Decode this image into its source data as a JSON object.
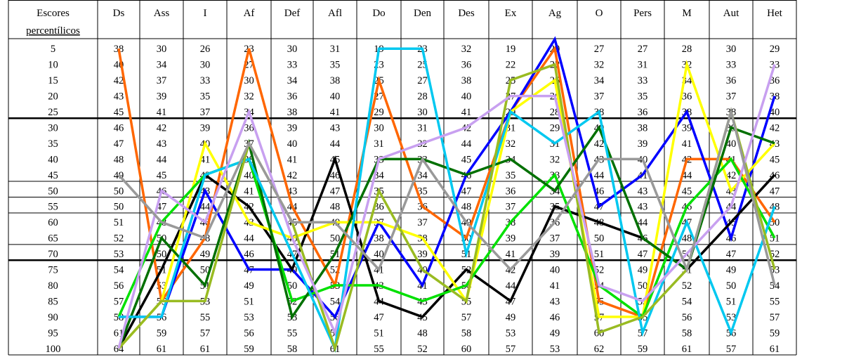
{
  "chart_data": {
    "type": "table",
    "title": "",
    "columns": [
      "Escores percentílicos",
      "Ds",
      "Ass",
      "I",
      "Af",
      "Def",
      "Afl",
      "Do",
      "Den",
      "Des",
      "Ex",
      "Ag",
      "O",
      "Pers",
      "M",
      "Aut",
      "Het"
    ],
    "header_first_line": "Escores",
    "header_second_line": "percentílicos",
    "percentiles": [
      5,
      10,
      15,
      20,
      25,
      30,
      35,
      40,
      45,
      50,
      55,
      60,
      65,
      70,
      75,
      80,
      85,
      90,
      95,
      100
    ],
    "cells": [
      [
        "38",
        "30",
        "26",
        "23",
        "30",
        "31",
        "19",
        "23",
        "32",
        "19",
        "20",
        "27",
        "27",
        "28",
        "30",
        "29"
      ],
      [
        "40",
        "34",
        "30",
        "27",
        "33",
        "35",
        "23",
        "25",
        "36",
        "22",
        "22",
        "32",
        "31",
        "32",
        "33",
        "33"
      ],
      [
        "42",
        "37",
        "33",
        "30",
        "34",
        "38",
        "25",
        "27",
        "38",
        "25",
        "25",
        "34",
        "33",
        "34",
        "36",
        "36"
      ],
      [
        "43",
        "39",
        "35",
        "32",
        "36",
        "40",
        "27",
        "28",
        "40",
        "27",
        "26",
        "37",
        "35",
        "36",
        "37",
        "38"
      ],
      [
        "45",
        "41",
        "37",
        "34",
        "38",
        "41",
        "29",
        "30",
        "41",
        "29",
        "28",
        "38",
        "36",
        "38",
        "38",
        "40"
      ],
      [
        "46",
        "42",
        "39",
        "36",
        "39",
        "43",
        "30",
        "31",
        "42",
        "31",
        "29",
        "40",
        "38",
        "39",
        "39",
        "42"
      ],
      [
        "47",
        "43",
        "40",
        "37",
        "40",
        "44",
        "31",
        "32",
        "44",
        "32",
        "31",
        "42",
        "39",
        "41",
        "40",
        "43"
      ],
      [
        "48",
        "44",
        "41",
        "38",
        "41",
        "45",
        "33",
        "33",
        "45",
        "34",
        "32",
        "43",
        "40",
        "42",
        "41",
        "45"
      ],
      [
        "49",
        "45",
        "42",
        "40",
        "42",
        "46",
        "34",
        "34",
        "46",
        "35",
        "33",
        "44",
        "41",
        "44",
        "42",
        "46"
      ],
      [
        "50",
        "46",
        "43",
        "41",
        "43",
        "47",
        "35",
        "35",
        "47",
        "36",
        "34",
        "46",
        "43",
        "45",
        "43",
        "47"
      ],
      [
        "50",
        "47",
        "44",
        "42",
        "44",
        "48",
        "36",
        "36",
        "48",
        "37",
        "35",
        "47",
        "43",
        "46",
        "44",
        "48"
      ],
      [
        "51",
        "48",
        "46",
        "43",
        "45",
        "49",
        "37",
        "37",
        "49",
        "38",
        "36",
        "48",
        "44",
        "47",
        "45",
        "50"
      ],
      [
        "52",
        "50",
        "48",
        "44",
        "46",
        "50",
        "38",
        "38",
        "50",
        "39",
        "37",
        "50",
        "46",
        "48",
        "46",
        "51"
      ],
      [
        "53",
        "50",
        "49",
        "46",
        "47",
        "51",
        "40",
        "39",
        "51",
        "41",
        "39",
        "51",
        "47",
        "50",
        "47",
        "52"
      ],
      [
        "54",
        "51",
        "50",
        "47",
        "49",
        "52",
        "41",
        "40",
        "52",
        "42",
        "40",
        "52",
        "49",
        "51",
        "49",
        "53"
      ],
      [
        "56",
        "53",
        "51",
        "49",
        "50",
        "53",
        "43",
        "41",
        "54",
        "44",
        "41",
        "54",
        "50",
        "52",
        "50",
        "54"
      ],
      [
        "57",
        "55",
        "53",
        "51",
        "52",
        "54",
        "44",
        "43",
        "55",
        "47",
        "43",
        "55",
        "53",
        "54",
        "51",
        "55"
      ],
      [
        "58",
        "56",
        "55",
        "53",
        "53",
        "56",
        "47",
        "45",
        "57",
        "49",
        "46",
        "57",
        "55",
        "56",
        "53",
        "57"
      ],
      [
        "61",
        "59",
        "57",
        "56",
        "55",
        "59",
        "51",
        "48",
        "58",
        "53",
        "49",
        "60",
        "57",
        "58",
        "56",
        "59"
      ],
      [
        "64",
        "61",
        "61",
        "59",
        "58",
        "61",
        "55",
        "52",
        "60",
        "57",
        "53",
        "62",
        "59",
        "61",
        "57",
        "61"
      ]
    ],
    "series": [
      {
        "color": "#ff6600",
        "values": [
          5,
          85,
          65,
          5,
          55,
          80,
          15,
          55,
          65,
          25,
          5,
          85,
          90,
          40,
          40,
          60
        ]
      },
      {
        "color": "#0000ff",
        "values": [
          90,
          90,
          50,
          75,
          75,
          90,
          60,
          80,
          45,
          25,
          2,
          55,
          45,
          25,
          65,
          20
        ]
      },
      {
        "color": "#000000",
        "values": [
          100,
          75,
          45,
          55,
          75,
          40,
          85,
          90,
          75,
          85,
          55,
          60,
          65,
          75,
          60,
          45
        ]
      },
      {
        "color": "#ffff00",
        "values": [
          100,
          85,
          35,
          60,
          65,
          60,
          60,
          65,
          85,
          25,
          15,
          90,
          90,
          10,
          50,
          35
        ]
      },
      {
        "color": "#00e000",
        "values": [
          90,
          60,
          45,
          40,
          85,
          80,
          80,
          85,
          80,
          60,
          45,
          80,
          90,
          55,
          40,
          65
        ]
      },
      {
        "color": "#007000",
        "values": [
          100,
          65,
          80,
          35,
          90,
          70,
          40,
          40,
          45,
          40,
          50,
          30,
          65,
          75,
          30,
          35
        ]
      },
      {
        "color": "#00c8f0",
        "values": [
          90,
          90,
          45,
          40,
          70,
          100,
          5,
          5,
          70,
          25,
          35,
          25,
          95,
          60,
          95,
          55
        ]
      },
      {
        "color": "#99bb22",
        "values": [
          100,
          85,
          85,
          35,
          60,
          100,
          50,
          75,
          85,
          15,
          10,
          95,
          90,
          75,
          25,
          75
        ]
      },
      {
        "color": "#c8a0f0",
        "values": [
          100,
          50,
          60,
          25,
          65,
          95,
          40,
          35,
          30,
          20,
          20,
          80,
          85,
          70,
          55,
          10
        ]
      },
      {
        "color": "#999999",
        "values": [
          45,
          60,
          65,
          35,
          60,
          60,
          75,
          40,
          60,
          75,
          60,
          40,
          40,
          75,
          25,
          80
        ]
      }
    ]
  }
}
